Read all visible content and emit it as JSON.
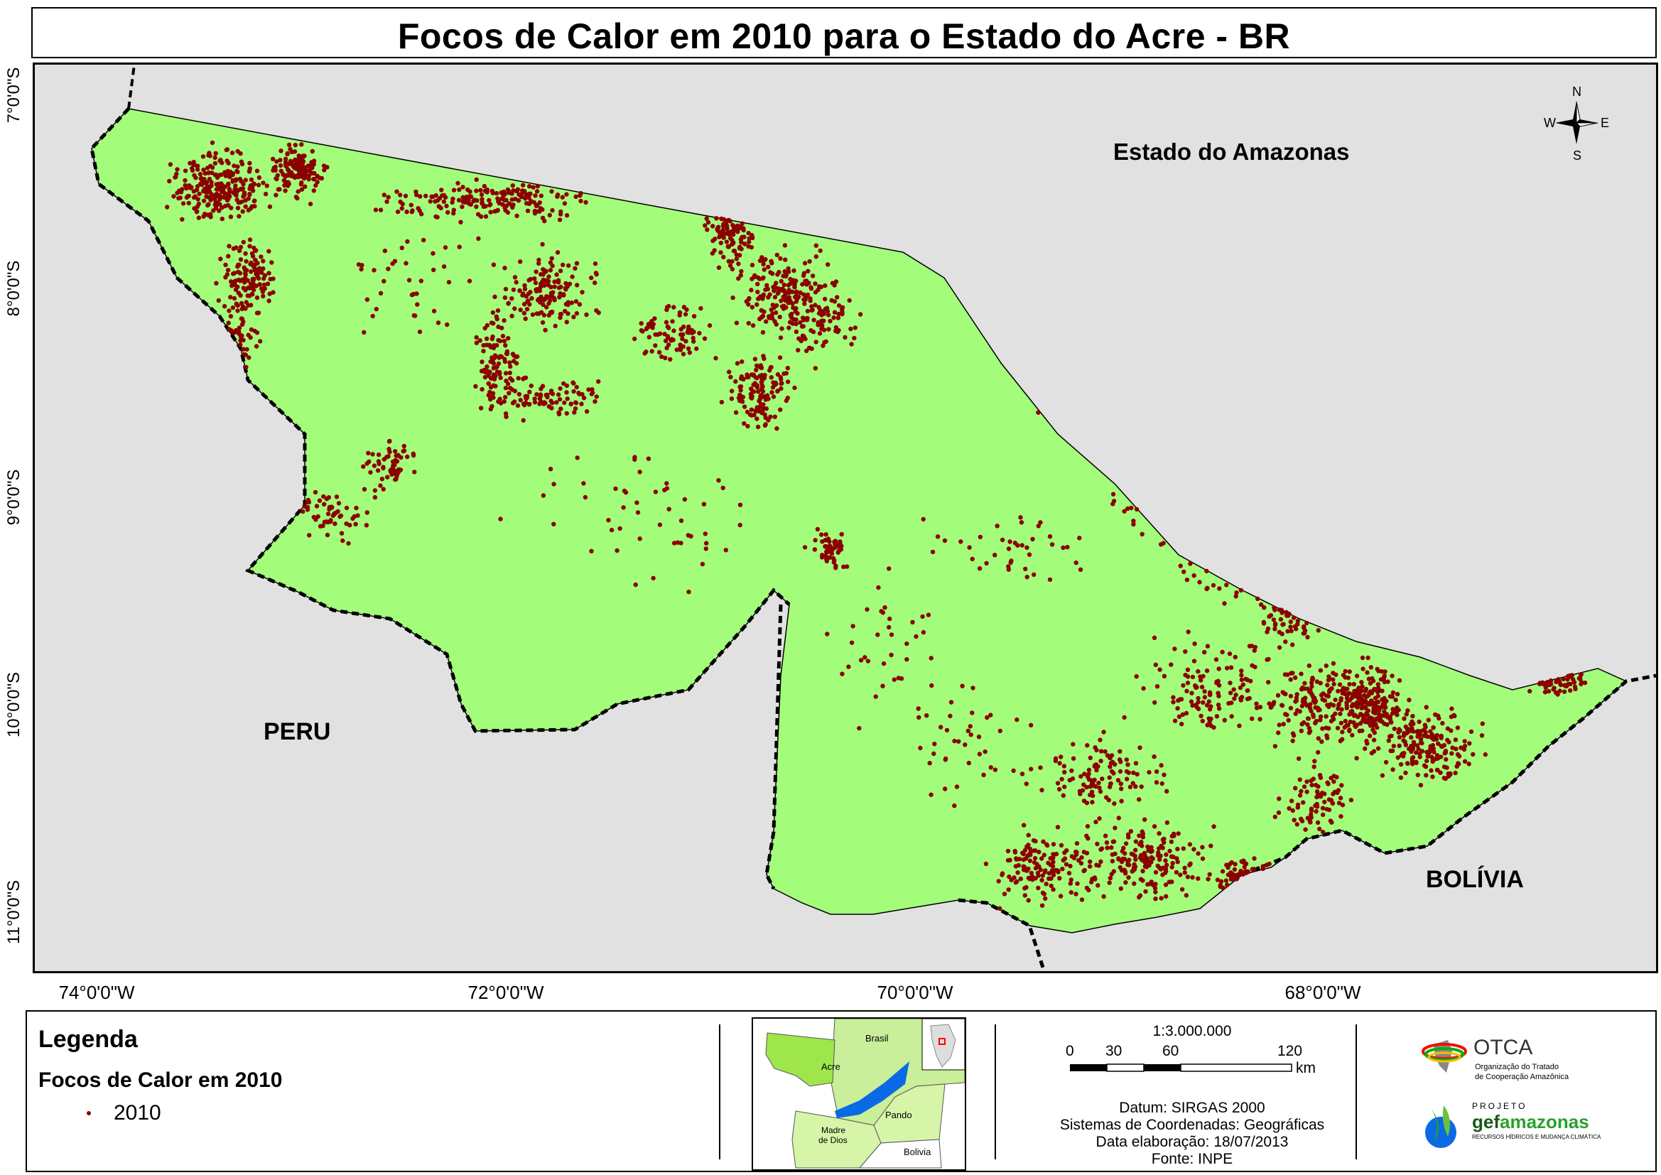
{
  "title": "Focos de Calor em 2010 para o Estado do Acre - BR",
  "map": {
    "lat_labels": [
      "7°0'0\"S",
      "8°0'0\"S",
      "9°0'0\"S",
      "10°0'0\"S",
      "11°0'0\"S"
    ],
    "lon_labels": [
      "74°0'0\"W",
      "72°0'0\"W",
      "70°0'0\"W",
      "68°0'0\"W"
    ],
    "places": {
      "amazonas": "Estado do Amazonas",
      "peru": "PERU",
      "bolivia": "BOLÍVIA"
    },
    "compass": {
      "n": "N",
      "s": "S",
      "e": "E",
      "w": "W"
    },
    "colors": {
      "acre_fill": "#a3fd7a",
      "neighbor_fill": "#e1e1e1",
      "hotspot": "#8b0000",
      "border": "#000000"
    }
  },
  "legend": {
    "title": "Legenda",
    "subtitle": "Focos de Calor em 2010",
    "item_label": "2010"
  },
  "inset": {
    "labels": {
      "brasil": "Brasil",
      "acre": "Acre",
      "pando": "Pando",
      "madre1": "Madre",
      "madre2": "de Dios",
      "bolivia": "Bolivia"
    },
    "colors": {
      "acre": "#9ee64a",
      "amazonas_river": "#0a6ae6",
      "light": "#d6f5a8"
    }
  },
  "scale": {
    "ratio": "1:3.000.000",
    "ticks": [
      "0",
      "30",
      "60",
      "120"
    ],
    "unit": "km",
    "datum": "Datum: SIRGAS 2000",
    "coords": "Sistemas de Coordenadas: Geográficas",
    "date": "Data elaboração: 18/07/2013",
    "source": "Fonte: INPE"
  },
  "logos": {
    "otca": "OTCA",
    "otca_sub1": "Organização do Tratado",
    "otca_sub2": "de Cooperação Amazônica",
    "projeto": "PROJETO",
    "gef_a": "gef",
    "gef_b": "amazonas",
    "gef_sub": "RECURSOS HÍDRICOS E MUDANÇA CLIMÁTICA"
  }
}
